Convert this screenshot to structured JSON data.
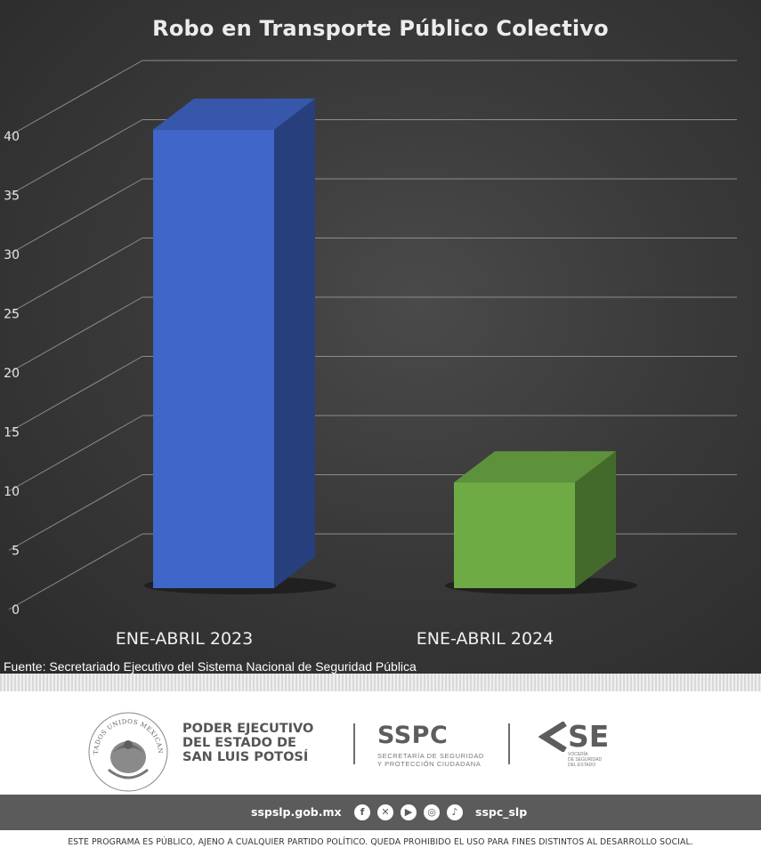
{
  "chart_data": {
    "type": "bar",
    "title": "Robo en Transporte Público Colectivo",
    "categories": [
      "ENE-ABRIL 2023",
      "ENE-ABRIL 2024"
    ],
    "values": [
      39,
      9
    ],
    "colors": [
      "#3f66c8",
      "#6eab45"
    ],
    "ylim": [
      0,
      40
    ],
    "yticks": [
      0,
      5,
      10,
      15,
      20,
      25,
      30,
      35,
      40
    ],
    "grid": true,
    "xlabel": "",
    "ylabel": ""
  },
  "source_note": "Fuente: Secretariado Ejecutivo del Sistema Nacional de Seguridad Pública",
  "footer": {
    "gov_name": "PODER EJECUTIVO\nDEL ESTADO DE\nSAN LUIS POTOSÍ",
    "sspc_title": "SSPC",
    "sspc_subtitle": "SECRETARÍA DE SEGURIDAD\nY PROTECCIÓN CIUDADANA",
    "se_letters": "SE",
    "se_subtitle": "VOCERÍA\nDE SEGURIDAD\nDEL ESTADO",
    "seal_text": "ESTADOS UNIDOS MEXICANOS",
    "website": "sspslp.gob.mx",
    "social_icons": [
      "facebook-icon",
      "x-icon",
      "youtube-icon",
      "instagram-icon",
      "tiktok-icon"
    ],
    "handle": "sspc_slp",
    "disclaimer": "ESTE PROGRAMA ES PÚBLICO, AJENO A CUALQUIER  PARTIDO POLÍTICO. QUEDA PROHIBIDO EL USO PARA FINES DISTINTOS AL DESARROLLO SOCIAL."
  }
}
